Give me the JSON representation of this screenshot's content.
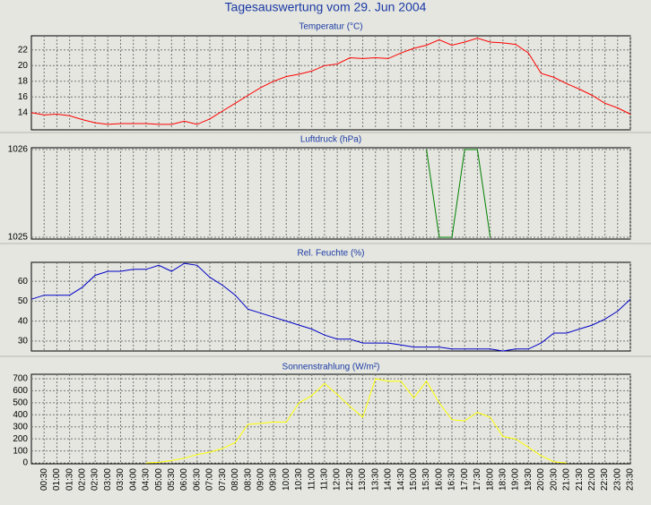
{
  "title": "Tagesauswertung vom 29. Jun 2004",
  "chart_data": [
    {
      "type": "line",
      "title": "Temperatur (°C)",
      "color": "#ff0000",
      "grid": true,
      "ylim": [
        11.8,
        23.8
      ],
      "yticks": [
        14,
        16,
        18,
        20,
        22
      ],
      "values": [
        14.0,
        13.7,
        13.8,
        13.6,
        13.1,
        12.7,
        12.5,
        12.6,
        12.6,
        12.6,
        12.5,
        12.5,
        12.9,
        12.5,
        13.2,
        14.2,
        15.2,
        16.2,
        17.2,
        18.0,
        18.6,
        18.9,
        19.3,
        20.0,
        20.2,
        21.0,
        20.9,
        21.0,
        20.9,
        21.6,
        22.2,
        22.6,
        23.3,
        22.6,
        23.0,
        23.5,
        23.0,
        22.9,
        22.7,
        21.6,
        19.0,
        18.5,
        17.7,
        17.0,
        16.2,
        15.2,
        14.6,
        13.8
      ]
    },
    {
      "type": "line",
      "title": "Luftdruck (hPa)",
      "color": "#008000",
      "grid": true,
      "ylim": [
        1024.98,
        1026.02
      ],
      "yticks": [
        1025,
        1026
      ],
      "values": [
        null,
        null,
        null,
        null,
        null,
        null,
        null,
        null,
        null,
        null,
        null,
        null,
        null,
        null,
        null,
        null,
        null,
        null,
        null,
        null,
        null,
        null,
        null,
        null,
        null,
        null,
        null,
        null,
        null,
        null,
        null,
        1026,
        1025,
        1025,
        1026,
        1026,
        1025,
        null,
        null,
        null,
        null,
        null,
        null,
        null,
        null,
        null,
        null,
        null
      ]
    },
    {
      "type": "line",
      "title": "Rel. Feuchte (%)",
      "color": "#0000c8",
      "grid": true,
      "ylim": [
        25,
        69.5
      ],
      "yticks": [
        30,
        40,
        50,
        60
      ],
      "values": [
        51,
        53,
        53,
        53,
        57,
        63,
        65,
        65,
        66,
        66,
        68,
        65,
        69,
        68,
        62,
        58,
        53,
        46,
        44,
        42,
        40,
        38,
        36,
        33,
        31,
        31,
        29,
        29,
        29,
        28,
        27,
        27,
        27,
        26,
        26,
        26,
        26,
        25,
        26,
        26,
        29,
        34,
        34,
        36,
        38,
        41,
        45,
        51
      ]
    },
    {
      "type": "line",
      "title": "Sonnenstrahlung (W/m²)",
      "color": "#ffff00",
      "grid": true,
      "ylim": [
        -7,
        737
      ],
      "yticks": [
        0,
        100,
        200,
        300,
        400,
        500,
        600,
        700
      ],
      "categories": [
        null,
        "00:30",
        "01:00",
        "01:30",
        "02:00",
        "02:30",
        "03:00",
        "03:30",
        "04:00",
        "04:30",
        "05:00",
        "05:30",
        "06:00",
        "06:30",
        "07:00",
        "07:30",
        "08:00",
        "08:30",
        "09:00",
        "09:30",
        "10:00",
        "10:30",
        "11:00",
        "11:30",
        "12:00",
        "12:30",
        "13:00",
        "13:30",
        "14:00",
        "14:30",
        "15:00",
        "15:30",
        "16:00",
        "16:30",
        "17:00",
        "17:30",
        "18:00",
        "18:30",
        "19:00",
        "19:30",
        "20:00",
        "20:30",
        "21:00",
        "21:30",
        "22:00",
        "22:30",
        "23:00",
        "23:30"
      ],
      "values": [
        null,
        null,
        null,
        null,
        null,
        null,
        null,
        null,
        null,
        0,
        5,
        20,
        40,
        70,
        90,
        120,
        170,
        320,
        330,
        340,
        340,
        500,
        560,
        660,
        570,
        470,
        380,
        700,
        680,
        680,
        540,
        680,
        500,
        360,
        350,
        420,
        380,
        220,
        200,
        130,
        60,
        10,
        0,
        null,
        null,
        null,
        null,
        null
      ]
    }
  ]
}
